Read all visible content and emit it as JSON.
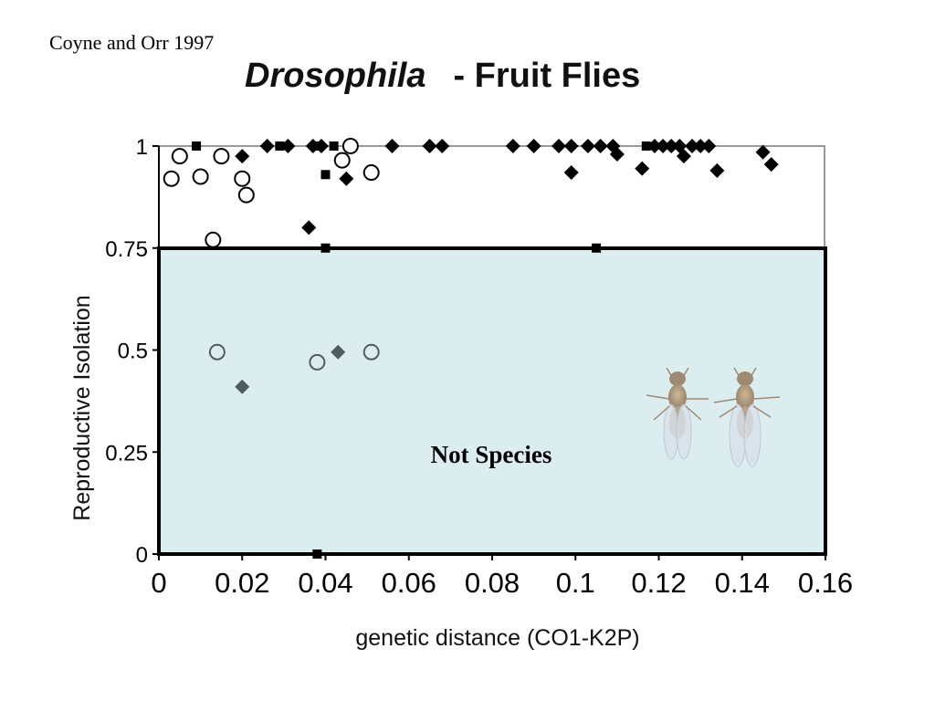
{
  "citation": "Coyne and Orr 1997",
  "title": {
    "genus": "Drosophila",
    "rest": "- Fruit Flies"
  },
  "chart_data": {
    "type": "scatter",
    "title": "Drosophila - Fruit Flies",
    "xlabel": "genetic distance (CO1-K2P)",
    "ylabel": "Reproductive Isolation",
    "xlim": [
      0,
      0.16
    ],
    "ylim": [
      0,
      1
    ],
    "x_ticks": [
      "0",
      "0.02",
      "0.04",
      "0.06",
      "0.08",
      "0.1",
      "0.12",
      "0.14",
      "0.16"
    ],
    "y_ticks": [
      "0",
      "0.25",
      "0.5",
      "0.75",
      "1"
    ],
    "grid": false,
    "shaded_region": {
      "label": "Not Species",
      "y_range": [
        0,
        0.75
      ],
      "color": "#dcedf0"
    },
    "series": [
      {
        "marker": "open-circle",
        "points": [
          [
            0.003,
            0.92
          ],
          [
            0.005,
            0.975
          ],
          [
            0.01,
            0.925
          ],
          [
            0.013,
            0.77
          ],
          [
            0.015,
            0.975
          ],
          [
            0.02,
            0.92
          ],
          [
            0.021,
            0.88
          ],
          [
            0.044,
            0.965
          ],
          [
            0.046,
            1.0
          ],
          [
            0.051,
            0.935
          ],
          [
            0.014,
            0.495
          ],
          [
            0.038,
            0.47
          ],
          [
            0.051,
            0.495
          ]
        ]
      },
      {
        "marker": "filled-diamond",
        "points": [
          [
            0.02,
            0.975
          ],
          [
            0.026,
            1.0
          ],
          [
            0.031,
            1.0
          ],
          [
            0.036,
            0.8
          ],
          [
            0.037,
            1.0
          ],
          [
            0.039,
            1.0
          ],
          [
            0.045,
            0.92
          ],
          [
            0.056,
            1.0
          ],
          [
            0.065,
            1.0
          ],
          [
            0.068,
            1.0
          ],
          [
            0.085,
            1.0
          ],
          [
            0.09,
            1.0
          ],
          [
            0.096,
            1.0
          ],
          [
            0.099,
            1.0
          ],
          [
            0.099,
            0.935
          ],
          [
            0.103,
            1.0
          ],
          [
            0.106,
            1.0
          ],
          [
            0.109,
            1.0
          ],
          [
            0.11,
            0.98
          ],
          [
            0.116,
            0.945
          ],
          [
            0.119,
            1.0
          ],
          [
            0.121,
            1.0
          ],
          [
            0.123,
            1.0
          ],
          [
            0.125,
            1.0
          ],
          [
            0.126,
            0.975
          ],
          [
            0.128,
            1.0
          ],
          [
            0.13,
            1.0
          ],
          [
            0.132,
            1.0
          ],
          [
            0.134,
            0.94
          ],
          [
            0.145,
            0.985
          ],
          [
            0.147,
            0.955
          ],
          [
            0.02,
            0.41
          ],
          [
            0.043,
            0.495
          ]
        ]
      },
      {
        "marker": "filled-square",
        "points": [
          [
            0.009,
            1.0
          ],
          [
            0.029,
            1.0
          ],
          [
            0.038,
            1.0
          ],
          [
            0.042,
            1.0
          ],
          [
            0.04,
            0.93
          ],
          [
            0.04,
            0.75
          ],
          [
            0.105,
            0.75
          ],
          [
            0.117,
            1.0
          ],
          [
            0.038,
            0.0
          ]
        ]
      }
    ]
  }
}
